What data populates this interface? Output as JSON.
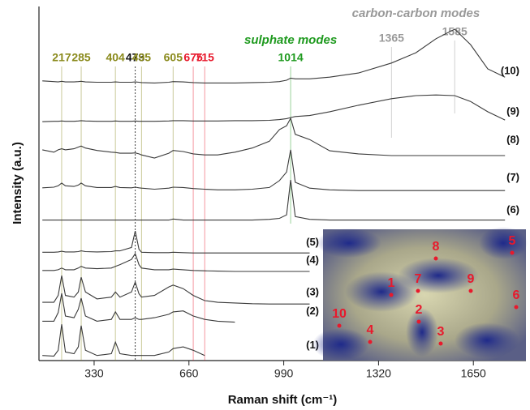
{
  "chart_data": {
    "type": "line",
    "x_label": "Raman shift (cm⁻¹)",
    "y_label": "Intensity (a.u.)",
    "xlim": [
      138,
      1833
    ],
    "ylim": [
      0,
      100
    ],
    "xticks": [
      330,
      660,
      990,
      1320,
      1650
    ],
    "x": [
      150,
      190,
      205,
      217,
      230,
      260,
      275,
      285,
      300,
      340,
      390,
      404,
      420,
      460,
      473,
      486,
      495,
      540,
      590,
      605,
      640,
      675,
      715,
      760,
      820,
      880,
      940,
      975,
      1000,
      1014,
      1030,
      1080,
      1150,
      1250,
      1365,
      1450,
      1520,
      1585,
      1640,
      1700,
      1760
    ],
    "series": [
      {
        "name": "(1)",
        "color": "#3a3a3a",
        "values": [
          1.5,
          1.3,
          3,
          10.6,
          2.5,
          2,
          4,
          10.2,
          3,
          1.5,
          2,
          5.4,
          2,
          1.5,
          1.5,
          1.5,
          1.5,
          1.5,
          2.5,
          3.5,
          4,
          3,
          1.5,
          null,
          null,
          null,
          null,
          null,
          null,
          null,
          null,
          null,
          null,
          null,
          null,
          null,
          null,
          null,
          null,
          null,
          null
        ]
      },
      {
        "name": "(2)",
        "color": "#3a3a3a",
        "values": [
          11.5,
          11.5,
          14,
          19.6,
          13,
          12.5,
          15,
          18.2,
          13,
          11.5,
          12,
          14.2,
          12,
          12,
          12.5,
          12,
          12,
          12.5,
          13.5,
          14.2,
          14.5,
          13,
          12,
          11.5,
          11.2,
          null,
          null,
          null,
          null,
          null,
          null,
          null,
          null,
          null,
          null,
          null,
          null,
          null,
          null,
          null,
          null
        ]
      },
      {
        "name": "(3)",
        "color": "#3a3a3a",
        "values": [
          17,
          17,
          19,
          24.8,
          19,
          18.5,
          20,
          24.3,
          20,
          18,
          18.5,
          20,
          18.5,
          20,
          22.9,
          19.5,
          18.5,
          19,
          21.5,
          22,
          21,
          19,
          17.5,
          17,
          16.8,
          16.6,
          16.5,
          16.5,
          16.5,
          16.5,
          16.5,
          16.5,
          null,
          null,
          null,
          null,
          null,
          null,
          null,
          null,
          null
        ]
      },
      {
        "name": "(4)",
        "color": "#3a3a3a",
        "values": [
          26.3,
          26.3,
          26.5,
          27,
          26.5,
          26.5,
          27,
          27.5,
          27,
          26.8,
          27,
          27.5,
          28,
          29.5,
          31.2,
          28,
          27,
          26.5,
          26.5,
          26.7,
          26.5,
          26.3,
          26.2,
          26.1,
          26,
          26,
          26,
          26,
          26,
          26,
          26,
          26,
          null,
          null,
          null,
          null,
          null,
          null,
          null,
          null,
          null
        ]
      },
      {
        "name": "(5)",
        "color": "#3a3a3a",
        "values": [
          31.6,
          31.6,
          31.7,
          31.9,
          31.7,
          31.7,
          31.8,
          32,
          31.8,
          31.7,
          31.8,
          32,
          32,
          33,
          37.8,
          32.5,
          31.6,
          31.5,
          31.5,
          31.6,
          31.5,
          31.4,
          31.4,
          31.4,
          31.4,
          31.4,
          31.4,
          31.4,
          31.4,
          31.4,
          31.4,
          31.4,
          null,
          null,
          null,
          null,
          null,
          null,
          null,
          null,
          null
        ]
      },
      {
        "name": "(6)",
        "color": "#3a3a3a",
        "values": [
          41,
          41,
          41,
          41,
          41,
          41,
          41,
          41,
          41,
          41,
          41,
          41,
          41,
          41,
          41,
          41,
          41,
          41,
          41,
          41.3,
          41,
          41,
          41,
          41,
          41,
          41,
          41.2,
          41.5,
          42.5,
          52.7,
          42,
          41.2,
          41,
          41,
          41,
          41,
          41,
          41,
          41,
          41,
          41
        ]
      },
      {
        "name": "(7)",
        "color": "#3a3a3a",
        "values": [
          50.4,
          50.6,
          51,
          51.8,
          51,
          50.8,
          51.2,
          51.8,
          51,
          50.5,
          50.5,
          50.8,
          50.5,
          50.4,
          50.6,
          50.4,
          50.3,
          50,
          50.3,
          50.6,
          50.5,
          50.2,
          50,
          49.8,
          49.8,
          50,
          50.5,
          52.5,
          55,
          61.5,
          52,
          50.3,
          49.8,
          49.6,
          49.6,
          49.6,
          49.6,
          49.6,
          49.6,
          49.6,
          49.6
        ]
      },
      {
        "name": "(8)",
        "color": "#3a3a3a",
        "values": [
          61.5,
          60.8,
          61.5,
          61.8,
          61.5,
          61.8,
          62.3,
          62.6,
          62,
          61.3,
          60.8,
          60.7,
          60.5,
          60.5,
          60.6,
          60.3,
          60,
          59.1,
          60.5,
          61.3,
          61,
          60.3,
          60,
          60,
          60.8,
          62,
          64,
          67.4,
          68.5,
          70.7,
          66,
          64.5,
          61.2,
          60.3,
          59.8,
          59.8,
          59.8,
          59.8,
          59.8,
          59.8,
          59.8
        ]
      },
      {
        "name": "(9)",
        "color": "#3a3a3a",
        "values": [
          69.7,
          69.8,
          69.8,
          69.9,
          69.8,
          69.8,
          69.9,
          70,
          69.9,
          69.8,
          69.8,
          69.9,
          69.8,
          69.8,
          69.9,
          69.8,
          69.8,
          69.8,
          69.9,
          70,
          70,
          69.9,
          69.9,
          69.9,
          70,
          70,
          70.1,
          70.3,
          70.6,
          70.9,
          71.2,
          71.5,
          72.6,
          74.5,
          76.4,
          77.3,
          77.5,
          77.3,
          75.6,
          72.6,
          70.2
        ]
      },
      {
        "name": "(10)",
        "color": "#3a3a3a",
        "values": [
          81.6,
          81.4,
          81.3,
          81.5,
          81.3,
          81.3,
          81.4,
          81.5,
          81.3,
          81.2,
          81.2,
          81.3,
          81.2,
          81.2,
          81.3,
          81.2,
          81.1,
          81,
          81.2,
          81.4,
          81.3,
          81.1,
          81,
          81,
          81,
          81.1,
          81.2,
          81.4,
          81.8,
          82.4,
          82.2,
          82.2,
          82.7,
          83.9,
          86.8,
          89.8,
          93.9,
          96.7,
          92.2,
          85.1,
          82.7
        ]
      }
    ],
    "annotations": [
      {
        "value": 217,
        "color": "#8a8a1c"
      },
      {
        "value": 285,
        "color": "#8a8a1c"
      },
      {
        "value": 404,
        "color": "#8a8a1c"
      },
      {
        "value": 473,
        "color": "#111111",
        "dotted": true
      },
      {
        "value": 495,
        "color": "#8a8a1c"
      },
      {
        "value": 605,
        "color": "#8a8a1c"
      },
      {
        "value": 675,
        "color": "#e8192c"
      },
      {
        "value": 715,
        "color": "#e8192c"
      },
      {
        "value": 1014,
        "color": "#1f9a1f"
      },
      {
        "value": 1365,
        "color": "#999999"
      },
      {
        "value": 1585,
        "color": "#999999"
      }
    ],
    "annotation_groups": [
      {
        "label": "sulphate modes",
        "color": "#1f9a1f"
      },
      {
        "label": "carbon-carbon modes",
        "color": "#999999"
      }
    ],
    "inset_points": [
      "1",
      "2",
      "3",
      "4",
      "5",
      "6",
      "7",
      "8",
      "9",
      "10"
    ]
  }
}
